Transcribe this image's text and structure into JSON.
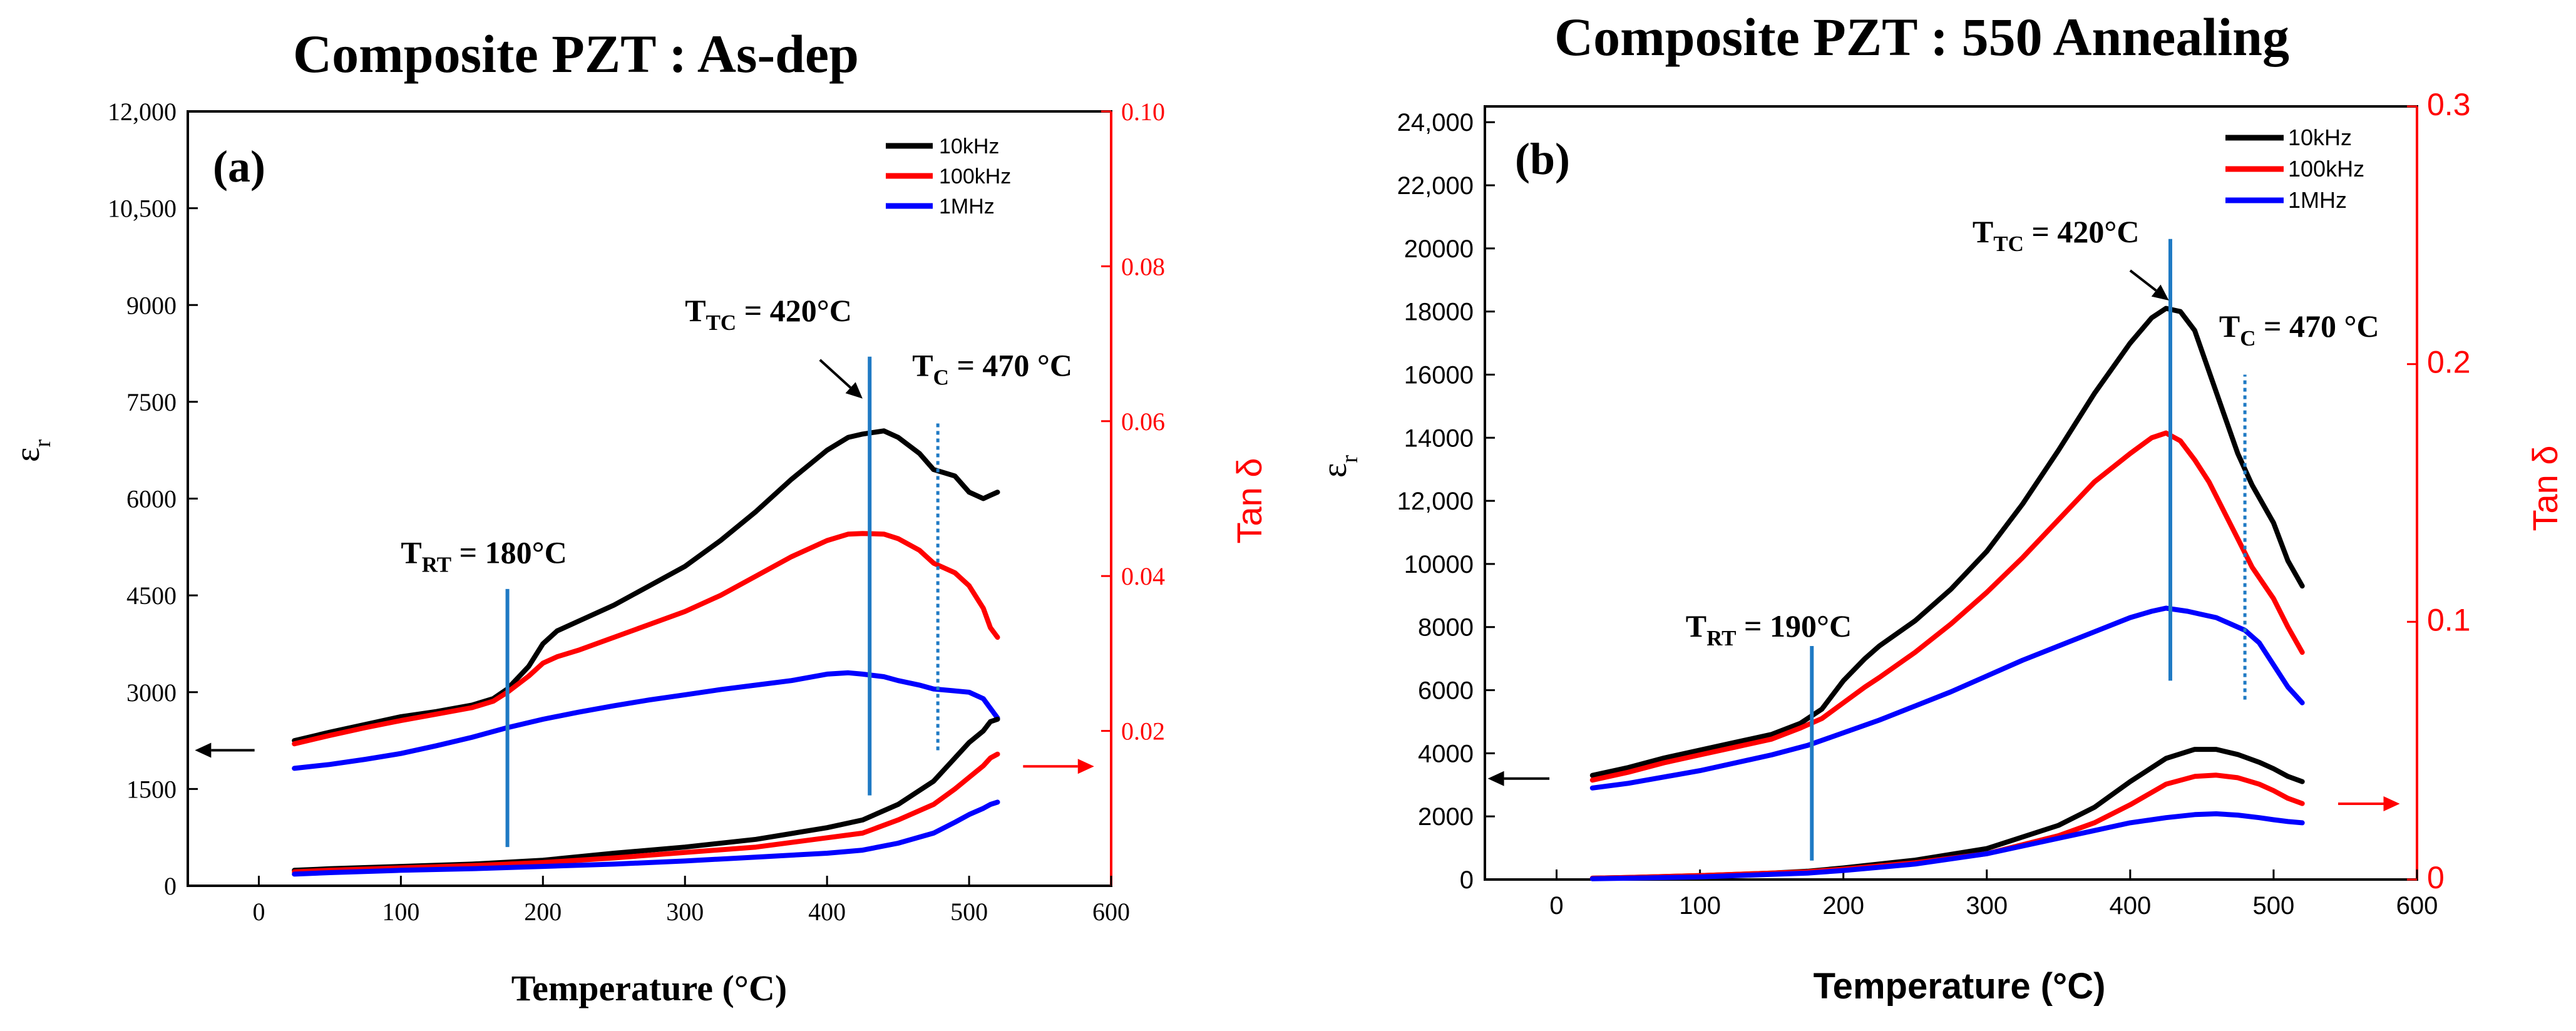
{
  "colors": {
    "axis": "#000000",
    "right_axis": "#ff0000",
    "s10k": "#000000",
    "s100k": "#ff0000",
    "s1M": "#0000ff",
    "marker_line": "#1f7ac4"
  },
  "chart_data": [
    {
      "id": "a",
      "type": "line",
      "title": "Composite PZT : As-dep",
      "panel_label": "(a)",
      "xlabel": "Temperature (°C)",
      "ylabel": "ε",
      "ylabel_sub": "r",
      "y2label": "Tan δ",
      "xlim": [
        -50,
        600
      ],
      "ylim": [
        0,
        12000
      ],
      "y2lim": [
        0,
        0.1
      ],
      "x_ticks": [
        "0",
        "100",
        "200",
        "300",
        "400",
        "500",
        "600"
      ],
      "y_ticks": [
        "0",
        "1500",
        "3000",
        "4500",
        "6000",
        "7500",
        "9000",
        "10,500",
        "12,000"
      ],
      "y2_ticks": [
        "0.02",
        "0.04",
        "0.06",
        "0.08",
        "0.10"
      ],
      "legend": [
        "10kHz",
        "100kHz",
        "1MHz"
      ],
      "legend_position": "top-right",
      "series": [
        {
          "name": "10kHz",
          "axis": "left",
          "x": [
            25,
            50,
            75,
            100,
            125,
            150,
            165,
            175,
            190,
            200,
            210,
            225,
            250,
            275,
            300,
            325,
            350,
            375,
            400,
            415,
            425,
            440,
            450,
            465,
            475,
            490,
            500,
            510,
            515,
            520
          ],
          "values": [
            2250,
            2380,
            2500,
            2620,
            2700,
            2800,
            2900,
            3050,
            3400,
            3750,
            3950,
            4100,
            4350,
            4650,
            4950,
            5350,
            5800,
            6300,
            6750,
            6950,
            7000,
            7050,
            6950,
            6700,
            6450,
            6350,
            6100,
            6000,
            6050,
            6100
          ]
        },
        {
          "name": "100kHz",
          "axis": "left",
          "x": [
            25,
            50,
            75,
            100,
            125,
            150,
            165,
            175,
            190,
            200,
            210,
            225,
            250,
            275,
            300,
            325,
            350,
            375,
            400,
            415,
            425,
            440,
            450,
            465,
            475,
            490,
            500,
            510,
            515,
            520
          ],
          "values": [
            2200,
            2330,
            2450,
            2560,
            2660,
            2760,
            2860,
            3000,
            3250,
            3450,
            3550,
            3650,
            3850,
            4050,
            4250,
            4500,
            4800,
            5100,
            5350,
            5450,
            5460,
            5450,
            5380,
            5200,
            5000,
            4850,
            4650,
            4300,
            4000,
            3850
          ]
        },
        {
          "name": "1MHz",
          "axis": "left",
          "x": [
            25,
            50,
            75,
            100,
            125,
            150,
            175,
            200,
            225,
            250,
            275,
            300,
            325,
            350,
            375,
            400,
            415,
            425,
            440,
            450,
            465,
            475,
            490,
            500,
            510,
            515,
            520
          ],
          "values": [
            1820,
            1880,
            1960,
            2050,
            2170,
            2300,
            2450,
            2580,
            2690,
            2790,
            2880,
            2960,
            3040,
            3110,
            3180,
            3280,
            3300,
            3280,
            3240,
            3180,
            3110,
            3050,
            3020,
            3000,
            2900,
            2750,
            2600
          ]
        },
        {
          "name": "10kHz",
          "axis": "right",
          "x": [
            25,
            50,
            100,
            150,
            200,
            250,
            300,
            350,
            400,
            425,
            450,
            475,
            490,
            500,
            510,
            515,
            520
          ],
          "values": [
            0.002,
            0.0022,
            0.0025,
            0.0028,
            0.0033,
            0.0042,
            0.005,
            0.006,
            0.0075,
            0.0085,
            0.0105,
            0.0135,
            0.0165,
            0.0185,
            0.02,
            0.0212,
            0.0215
          ]
        },
        {
          "name": "100kHz",
          "axis": "right",
          "x": [
            25,
            50,
            100,
            150,
            200,
            250,
            300,
            350,
            400,
            425,
            450,
            475,
            490,
            500,
            510,
            515,
            520
          ],
          "values": [
            0.0018,
            0.002,
            0.0023,
            0.0026,
            0.003,
            0.0036,
            0.0043,
            0.005,
            0.0062,
            0.0068,
            0.0085,
            0.0105,
            0.0125,
            0.014,
            0.0155,
            0.0165,
            0.017
          ]
        },
        {
          "name": "1MHz",
          "axis": "right",
          "x": [
            25,
            50,
            100,
            150,
            200,
            250,
            300,
            350,
            400,
            425,
            450,
            475,
            490,
            500,
            510,
            515,
            520
          ],
          "values": [
            0.0015,
            0.0017,
            0.002,
            0.0022,
            0.0025,
            0.0028,
            0.0032,
            0.0037,
            0.0042,
            0.0046,
            0.0055,
            0.0068,
            0.0082,
            0.0092,
            0.01,
            0.0105,
            0.0108
          ]
        }
      ],
      "markers": [
        {
          "x": 175,
          "y_from": 600,
          "y_to": 4600,
          "style": "solid"
        },
        {
          "x": 430,
          "y_from": 1400,
          "y_to": 8200,
          "style": "solid"
        },
        {
          "x": 478,
          "y_from": 2100,
          "y_to": 7200,
          "style": "dotted"
        }
      ],
      "annotations": [
        {
          "main": "T",
          "sub": "RT",
          "rest": " = 180°C",
          "x": 100,
          "y": 5000
        },
        {
          "main": "T",
          "sub": "TC",
          "rest": " = 420°C",
          "x": 300,
          "y": 8750
        },
        {
          "main": "T",
          "sub": "C",
          "rest": " = 470 °C",
          "x": 460,
          "y": 7900
        }
      ],
      "arrows": [
        {
          "x1": 395,
          "y1": 8150,
          "x2": 425,
          "y2": 7550,
          "color": "axis"
        },
        {
          "x1": -3,
          "y1": 2100,
          "x2": -45,
          "y2": 2100,
          "color": "axis"
        },
        {
          "x1": 538,
          "y1": 1850,
          "x2": 588,
          "y2": 1850,
          "color": "right_axis"
        }
      ]
    },
    {
      "id": "b",
      "type": "line",
      "title": "Composite PZT : 550 Annealing",
      "panel_label": "(b)",
      "xlabel": "Temperature (°C)",
      "ylabel": "ε",
      "ylabel_sub": "r",
      "y2label": "Tan δ",
      "xlim": [
        -50,
        600
      ],
      "ylim": [
        0,
        24500
      ],
      "y2lim": [
        0,
        0.3
      ],
      "x_ticks": [
        "0",
        "100",
        "200",
        "300",
        "400",
        "500",
        "600"
      ],
      "y_ticks": [
        "0",
        "2000",
        "4000",
        "6000",
        "8000",
        "10000",
        "12,000",
        "14000",
        "16000",
        "18000",
        "20000",
        "22,000",
        "24,000"
      ],
      "y2_ticks": [
        "0",
        "0.1",
        "0.2",
        "0.3"
      ],
      "legend": [
        "10kHz",
        "100kHz",
        "1MHz"
      ],
      "legend_position": "top-right",
      "series": [
        {
          "name": "10kHz",
          "axis": "left",
          "x": [
            25,
            50,
            75,
            100,
            125,
            150,
            170,
            185,
            200,
            215,
            225,
            250,
            275,
            300,
            325,
            350,
            375,
            400,
            415,
            425,
            435,
            445,
            455,
            465,
            475,
            485,
            500,
            510,
            520
          ],
          "values": [
            3300,
            3550,
            3850,
            4100,
            4350,
            4600,
            4950,
            5400,
            6300,
            7000,
            7400,
            8200,
            9200,
            10400,
            11900,
            13600,
            15400,
            17000,
            17800,
            18100,
            18000,
            17400,
            16100,
            14800,
            13500,
            12500,
            11300,
            10100,
            9300
          ]
        },
        {
          "name": "100kHz",
          "axis": "left",
          "x": [
            25,
            50,
            75,
            100,
            125,
            150,
            170,
            185,
            200,
            215,
            225,
            250,
            275,
            300,
            325,
            350,
            375,
            400,
            415,
            425,
            435,
            445,
            455,
            465,
            475,
            485,
            500,
            510,
            520
          ],
          "values": [
            3150,
            3400,
            3700,
            3950,
            4200,
            4450,
            4800,
            5100,
            5600,
            6100,
            6400,
            7200,
            8100,
            9100,
            10200,
            11400,
            12600,
            13500,
            14000,
            14150,
            13900,
            13300,
            12600,
            11700,
            10800,
            9900,
            8900,
            8000,
            7200
          ]
        },
        {
          "name": "1MHz",
          "axis": "left",
          "x": [
            25,
            50,
            75,
            100,
            125,
            150,
            175,
            200,
            225,
            250,
            275,
            300,
            325,
            350,
            375,
            400,
            415,
            425,
            440,
            450,
            460,
            470,
            480,
            490,
            500,
            510,
            520
          ],
          "values": [
            2900,
            3050,
            3250,
            3450,
            3700,
            3950,
            4250,
            4650,
            5050,
            5500,
            5950,
            6450,
            6950,
            7400,
            7850,
            8300,
            8500,
            8600,
            8500,
            8400,
            8300,
            8100,
            7900,
            7500,
            6800,
            6100,
            5600
          ]
        },
        {
          "name": "10kHz",
          "axis": "right",
          "x": [
            25,
            50,
            100,
            150,
            175,
            200,
            250,
            300,
            350,
            375,
            400,
            425,
            445,
            460,
            475,
            490,
            500,
            510,
            520
          ],
          "values": [
            0.0005,
            0.0008,
            0.0015,
            0.0025,
            0.0032,
            0.0045,
            0.0075,
            0.012,
            0.021,
            0.028,
            0.038,
            0.047,
            0.0505,
            0.0505,
            0.0485,
            0.0455,
            0.043,
            0.04,
            0.038
          ]
        },
        {
          "name": "100kHz",
          "axis": "right",
          "x": [
            25,
            50,
            100,
            150,
            175,
            200,
            250,
            300,
            350,
            375,
            400,
            425,
            445,
            460,
            475,
            490,
            500,
            510,
            520
          ],
          "values": [
            0.0005,
            0.0008,
            0.0015,
            0.0025,
            0.003,
            0.004,
            0.0065,
            0.01,
            0.017,
            0.022,
            0.029,
            0.037,
            0.04,
            0.0405,
            0.0395,
            0.037,
            0.0345,
            0.0315,
            0.0295
          ]
        },
        {
          "name": "1MHz",
          "axis": "right",
          "x": [
            25,
            50,
            100,
            150,
            175,
            200,
            250,
            300,
            350,
            375,
            400,
            425,
            445,
            460,
            475,
            490,
            500,
            510,
            520
          ],
          "values": [
            0.0003,
            0.0005,
            0.001,
            0.002,
            0.0025,
            0.0035,
            0.006,
            0.01,
            0.016,
            0.019,
            0.022,
            0.024,
            0.0252,
            0.0255,
            0.025,
            0.024,
            0.0232,
            0.0225,
            0.022
          ]
        }
      ],
      "markers": [
        {
          "x": 178,
          "y_from": 600,
          "y_to": 7400,
          "style": "solid"
        },
        {
          "x": 428,
          "y_from": 6300,
          "y_to": 20300,
          "style": "solid"
        },
        {
          "x": 480,
          "y_from": 5700,
          "y_to": 16000,
          "style": "dotted"
        }
      ],
      "annotations": [
        {
          "main": "T",
          "sub": "RT",
          "rest": " = 190°C",
          "x": 90,
          "y": 7700
        },
        {
          "main": "T",
          "sub": "TC",
          "rest": " = 420°C",
          "x": 290,
          "y": 20200
        },
        {
          "main": "T",
          "sub": "C",
          "rest": " = 470 °C",
          "x": 462,
          "y": 17200
        }
      ],
      "arrows": [
        {
          "x1": 400,
          "y1": 19300,
          "x2": 427,
          "y2": 18350,
          "color": "axis"
        },
        {
          "x1": -5,
          "y1": 3200,
          "x2": -48,
          "y2": 3200,
          "color": "axis"
        },
        {
          "x1": 545,
          "y1": 2400,
          "x2": 588,
          "y2": 2400,
          "color": "right_axis"
        }
      ]
    }
  ]
}
